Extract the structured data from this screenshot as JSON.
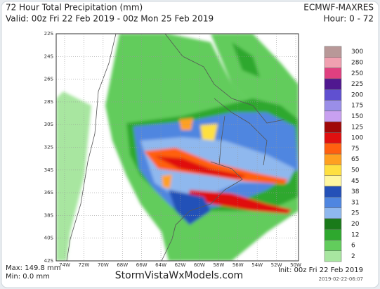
{
  "header": {
    "title": "72 Hour Total Precipitation (mm)",
    "model": "ECMWF-MAXRES",
    "valid": "Valid: 00z Fri 22 Feb 2019 - 00z Mon 25 Feb 2019",
    "hours": "Hour: 0 - 72"
  },
  "map": {
    "latitudes": [
      "22S",
      "24S",
      "26S",
      "28S",
      "30S",
      "32S",
      "34S",
      "36S",
      "38S",
      "40S",
      "42S"
    ],
    "longitudes": [
      "74W",
      "72W",
      "70W",
      "68W",
      "66W",
      "64W",
      "62W",
      "60W",
      "58W",
      "56W",
      "54W",
      "52W",
      "50W"
    ]
  },
  "legend": [
    {
      "label": "2",
      "color": "#a8e6a0"
    },
    {
      "label": "6",
      "color": "#62cc5c"
    },
    {
      "label": "12",
      "color": "#2ea82e"
    },
    {
      "label": "20",
      "color": "#1a7a1a"
    },
    {
      "label": "25",
      "color": "#8fb8ee"
    },
    {
      "label": "31",
      "color": "#4f86e0"
    },
    {
      "label": "38",
      "color": "#2451b8"
    },
    {
      "label": "45",
      "color": "#fff7a0"
    },
    {
      "label": "50",
      "color": "#ffe040"
    },
    {
      "label": "65",
      "color": "#ffa020"
    },
    {
      "label": "75",
      "color": "#ff6010"
    },
    {
      "label": "100",
      "color": "#e01010"
    },
    {
      "label": "125",
      "color": "#a00808"
    },
    {
      "label": "150",
      "color": "#c8a0f0"
    },
    {
      "label": "175",
      "color": "#9a8ee8"
    },
    {
      "label": "200",
      "color": "#6050d0"
    },
    {
      "label": "225",
      "color": "#501890"
    },
    {
      "label": "250",
      "color": "#e04080"
    },
    {
      "label": "280",
      "color": "#f0a0b0"
    },
    {
      "label": "300",
      "color": "#b89898"
    }
  ],
  "footer": {
    "max": "Max: 149.8 mm",
    "min": "Min: 0.0 mm",
    "site": "StormVistaWxModels.com",
    "init": "Init: 00z Fri 22 Feb 2019",
    "stamp": "2019-02-22-06:07"
  }
}
